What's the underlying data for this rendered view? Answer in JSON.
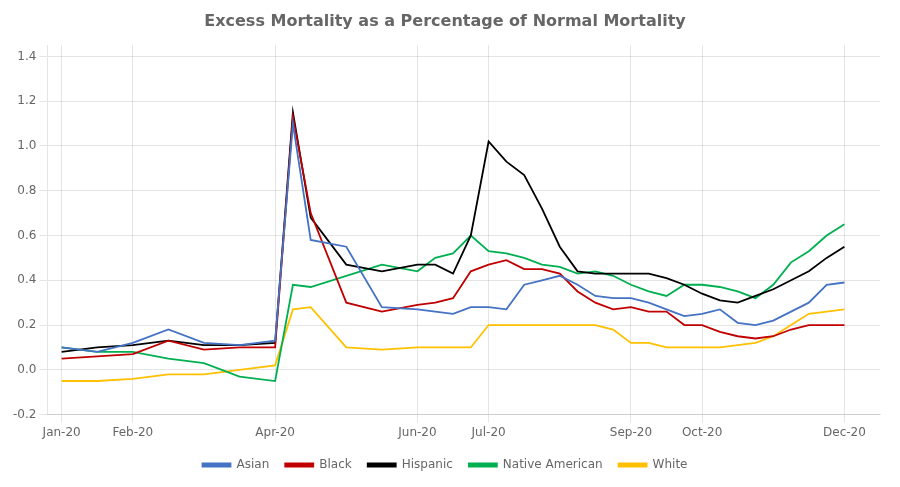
{
  "chart_data": {
    "type": "line",
    "title": "Excess Mortality as a Percentage of Normal Mortality",
    "x": [
      0,
      0.5,
      1,
      1.5,
      2,
      2.5,
      3,
      3.25,
      3.5,
      4,
      4.5,
      5,
      5.25,
      5.5,
      5.75,
      6,
      6.25,
      6.5,
      6.75,
      7,
      7.25,
      7.5,
      7.75,
      8,
      8.25,
      8.5,
      8.75,
      9,
      9.25,
      9.5,
      9.75,
      10,
      10.25,
      10.5,
      10.75,
      11
    ],
    "xlim": [
      -0.2,
      11.5
    ],
    "xticks": [
      {
        "value": 0,
        "label": "Jan-20"
      },
      {
        "value": 1,
        "label": "Feb-20"
      },
      {
        "value": 3,
        "label": "Apr-20"
      },
      {
        "value": 5,
        "label": "Jun-20"
      },
      {
        "value": 6,
        "label": "Jul-20"
      },
      {
        "value": 8,
        "label": "Sep-20"
      },
      {
        "value": 9,
        "label": "Oct-20"
      },
      {
        "value": 11,
        "label": "Dec-20"
      }
    ],
    "ylim": [
      -0.2,
      1.45
    ],
    "yticks": [
      -0.2,
      {
        "value": 0,
        "label": "0.0"
      },
      0.2,
      0.4,
      0.6,
      0.8,
      {
        "value": 1,
        "label": "1.0"
      },
      1.2,
      1.4
    ],
    "grid": true,
    "legend": "bottom",
    "series": [
      {
        "name": "Asian",
        "color": "#4472C4",
        "values": [
          0.1,
          0.08,
          0.12,
          0.18,
          0.12,
          0.11,
          0.13,
          1.1,
          0.58,
          0.55,
          0.28,
          0.27,
          0.26,
          0.25,
          0.28,
          0.28,
          0.27,
          0.38,
          0.4,
          0.42,
          0.38,
          0.33,
          0.32,
          0.32,
          0.3,
          0.27,
          0.24,
          0.25,
          0.27,
          0.21,
          0.2,
          0.22,
          0.26,
          0.3,
          0.38,
          0.39
        ]
      },
      {
        "name": "Black",
        "color": "#C00000",
        "values": [
          0.05,
          0.06,
          0.07,
          0.13,
          0.09,
          0.1,
          0.1,
          1.13,
          0.7,
          0.3,
          0.26,
          0.29,
          0.3,
          0.32,
          0.44,
          0.47,
          0.49,
          0.45,
          0.45,
          0.43,
          0.35,
          0.3,
          0.27,
          0.28,
          0.26,
          0.26,
          0.2,
          0.2,
          0.17,
          0.15,
          0.14,
          0.15,
          0.18,
          0.2,
          0.2,
          0.2
        ]
      },
      {
        "name": "Hispanic",
        "color": "#000000",
        "values": [
          0.08,
          0.1,
          0.11,
          0.13,
          0.11,
          0.11,
          0.12,
          1.15,
          0.68,
          0.47,
          0.44,
          0.47,
          0.47,
          0.43,
          0.6,
          1.02,
          0.93,
          0.87,
          0.72,
          0.55,
          0.44,
          0.43,
          0.43,
          0.43,
          0.43,
          0.41,
          0.38,
          0.34,
          0.31,
          0.3,
          0.33,
          0.36,
          0.4,
          0.44,
          0.5,
          0.55
        ]
      },
      {
        "name": "Native American",
        "color": "#00B050",
        "values": [
          0.1,
          0.08,
          0.08,
          0.05,
          0.03,
          -0.03,
          -0.05,
          0.38,
          0.37,
          0.42,
          0.47,
          0.44,
          0.5,
          0.52,
          0.6,
          0.53,
          0.52,
          0.5,
          0.47,
          0.46,
          0.43,
          0.44,
          0.42,
          0.38,
          0.35,
          0.33,
          0.38,
          0.38,
          0.37,
          0.35,
          0.32,
          0.38,
          0.48,
          0.53,
          0.6,
          0.65
        ]
      },
      {
        "name": "White",
        "color": "#FFC000",
        "values": [
          -0.05,
          -0.05,
          -0.04,
          -0.02,
          -0.02,
          0.0,
          0.02,
          0.27,
          0.28,
          0.1,
          0.09,
          0.1,
          0.1,
          0.1,
          0.1,
          0.2,
          0.2,
          0.2,
          0.2,
          0.2,
          0.2,
          0.2,
          0.18,
          0.12,
          0.12,
          0.1,
          0.1,
          0.1,
          0.1,
          0.11,
          0.12,
          0.15,
          0.2,
          0.25,
          0.26,
          0.27
        ]
      }
    ]
  }
}
